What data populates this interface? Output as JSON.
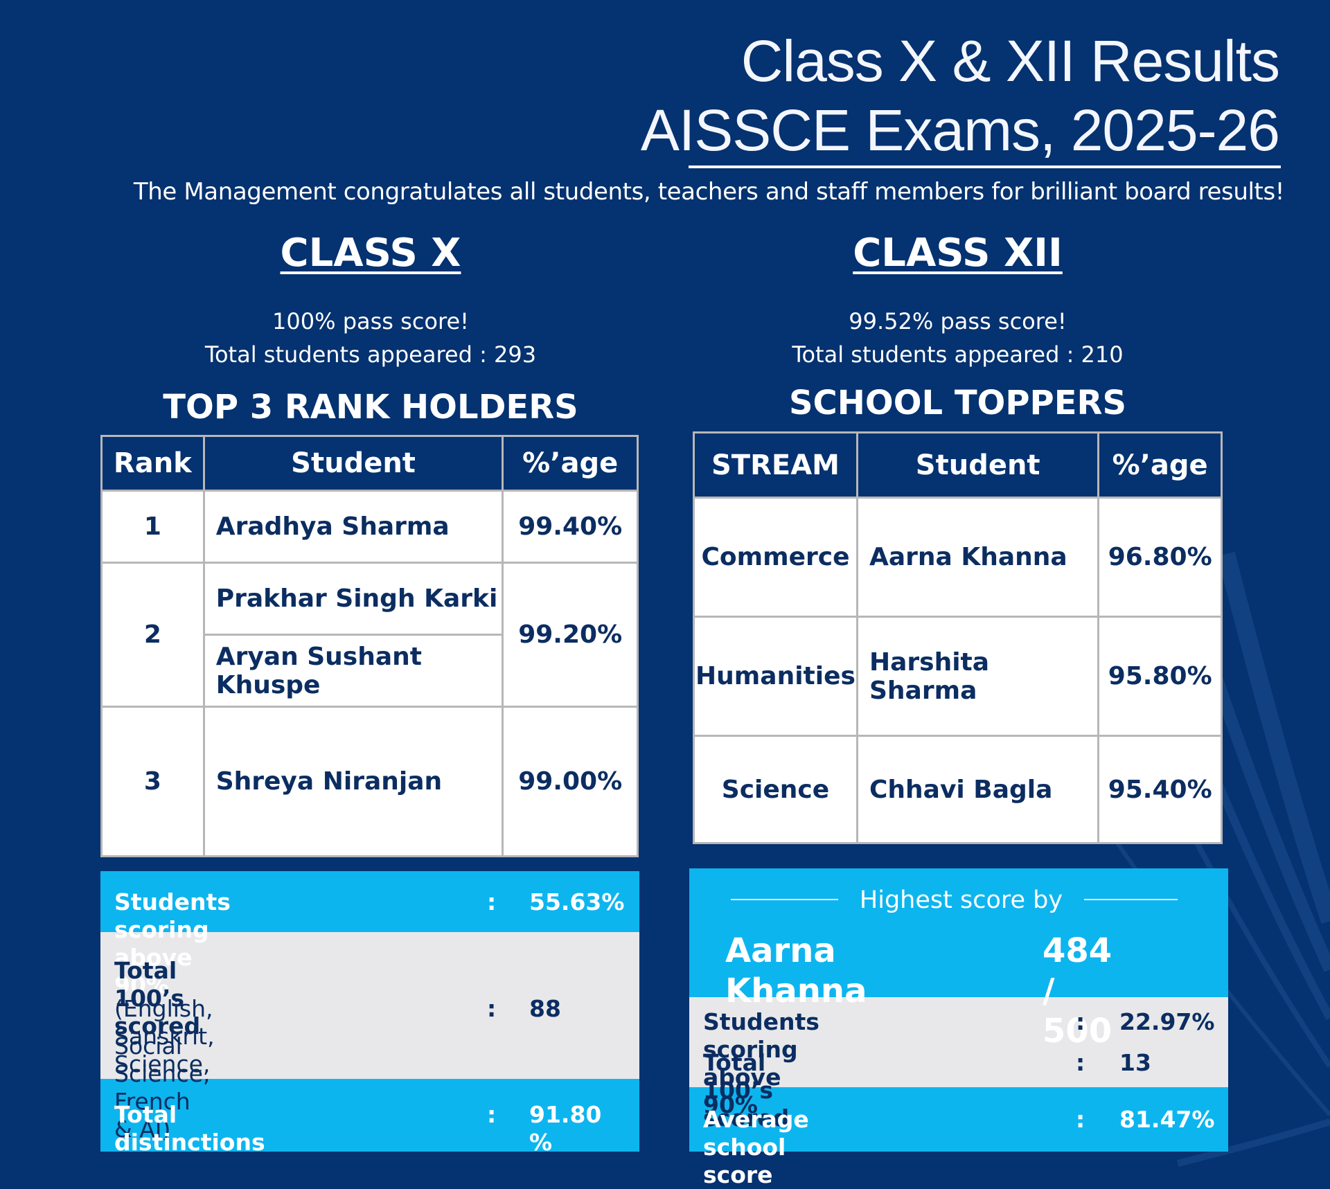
{
  "header": {
    "title_line1": "Class X & XII Results",
    "title_line2": "AISSCE Exams, 2025-26",
    "congratulations": "The Management congratulates all students, teachers and staff members for brilliant board results!"
  },
  "class_x": {
    "heading": "CLASS X",
    "pass_score": "100% pass score!",
    "students_appeared": "Total students appeared : 293",
    "table_title": "TOP 3 RANK HOLDERS",
    "columns": [
      "Rank",
      "Student",
      "%’age"
    ],
    "rank_holders": [
      {
        "rank": "1",
        "students": [
          "Aradhya Sharma"
        ],
        "percentage": "99.40%"
      },
      {
        "rank": "2",
        "students": [
          "Prakhar Singh Karki",
          "Aryan Sushant Khuspe"
        ],
        "percentage": "99.20%"
      },
      {
        "rank": "3",
        "students": [
          "Shreya Niranjan"
        ],
        "percentage": "99.00%"
      }
    ],
    "stats": {
      "above90_label": "Students scoring above 90%",
      "above90_value": "55.63%",
      "hundreds_label": "Total 100’s scored",
      "hundreds_subjects_line1": "(English, Sanskrit, Science,",
      "hundreds_subjects_line2": "Social Science, French & AI)",
      "hundreds_value": "88",
      "distinctions_label": "Total distinctions",
      "distinctions_value": "91.80 %",
      "separator": ":"
    }
  },
  "class_xii": {
    "heading": "CLASS XII",
    "pass_score": "99.52% pass score!",
    "students_appeared": "Total students appeared : 210",
    "table_title": "SCHOOL TOPPERS",
    "columns": [
      "STREAM",
      "Student",
      "%’age"
    ],
    "toppers": [
      {
        "stream": "Commerce",
        "student": "Aarna Khanna",
        "percentage": "96.80%"
      },
      {
        "stream": "Humanities",
        "student": "Harshita Sharma",
        "percentage": "95.80%"
      },
      {
        "stream": "Science",
        "student": "Chhavi Bagla",
        "percentage": "95.40%"
      }
    ],
    "highest": {
      "label": "Highest score by",
      "student": "Aarna Khanna",
      "score": "484 / 500"
    },
    "stats": {
      "above90_label": "Students scoring above 90%",
      "above90_value": "22.97%",
      "hundreds_label": "Total 100’s scored",
      "hundreds_value": "13",
      "average_label": "Average school score",
      "average_value": "81.47%",
      "separator": ":"
    }
  },
  "colors": {
    "background": "#053270",
    "accent": "#0db5ef",
    "panel_grey": "#e8e8ea",
    "text_dark": "#0b2d61"
  }
}
